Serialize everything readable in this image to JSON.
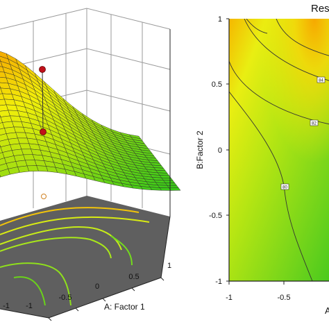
{
  "chart_data": [
    {
      "type": "surface",
      "xlabel": "A: Factor 1",
      "x_ticks": [
        "-1",
        "-0.5",
        "0",
        "0.5",
        "1"
      ],
      "y_ticks_partial": [
        "-1"
      ],
      "xlim": [
        -1,
        1
      ],
      "ylim": [
        -1,
        1
      ],
      "colormap": [
        "#2fc61a",
        "#a8e010",
        "#f2ef0a",
        "#f5a300"
      ],
      "floor_color": "#5d5d5d",
      "floor_contour_color": "#c8f020",
      "design_point_color": "#c0101a",
      "grid": true
    },
    {
      "type": "contour",
      "title_partial": "Res",
      "ylabel": "B:Factor 2",
      "xlabel_partial": "A",
      "x_ticks": [
        "-1",
        "-0.5"
      ],
      "y_ticks": [
        "1",
        "0.5",
        "0",
        "-0.5",
        "-1"
      ],
      "xlim": [
        -1,
        1
      ],
      "ylim": [
        -1,
        1
      ],
      "contour_labels": [
        "84",
        "82",
        "80"
      ],
      "colormap": [
        "#2fc61a",
        "#a8e010",
        "#f2ef0a",
        "#f5a300"
      ]
    }
  ]
}
